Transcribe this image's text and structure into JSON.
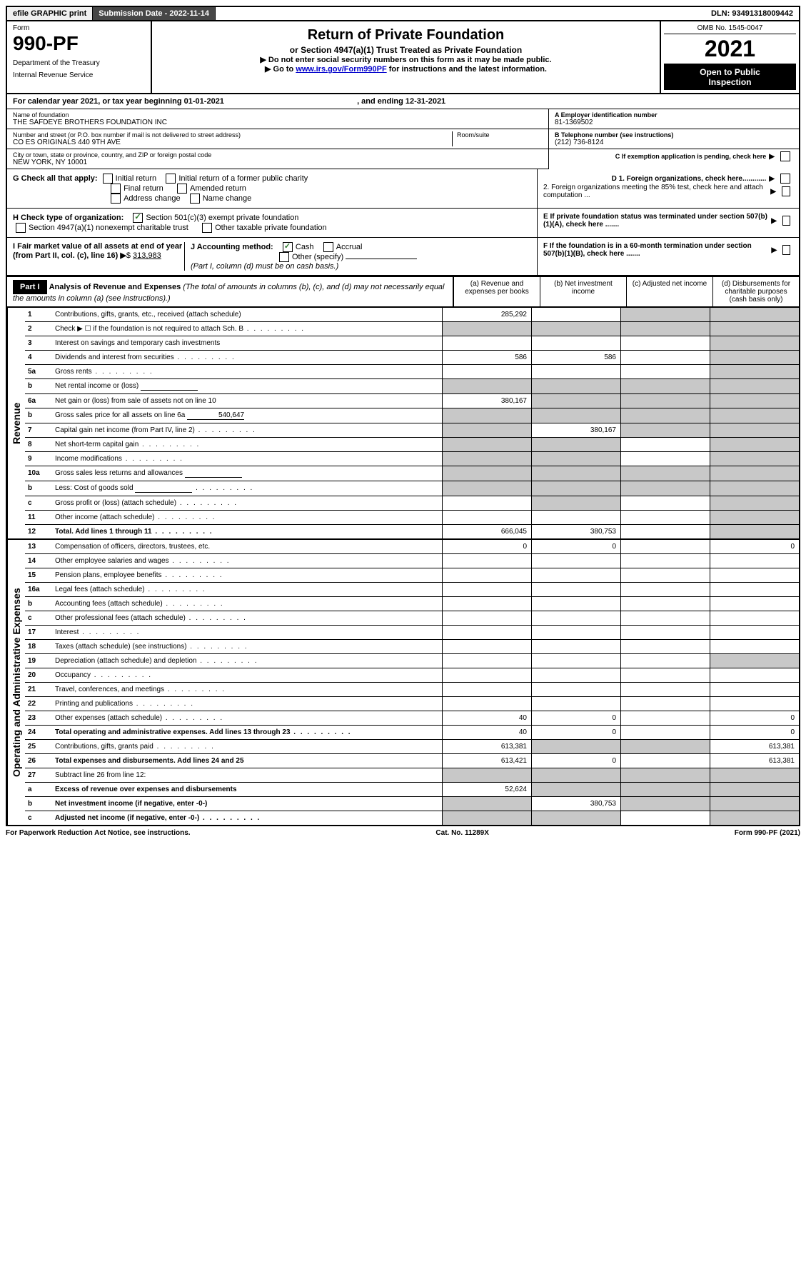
{
  "header": {
    "efile": "efile GRAPHIC print",
    "submission_label": "Submission Date - ",
    "submission_date": "2022-11-14",
    "dln_label": "DLN: ",
    "dln": "93491318009442"
  },
  "form_header": {
    "form_label": "Form",
    "form_number": "990-PF",
    "dept1": "Department of the Treasury",
    "dept2": "Internal Revenue Service",
    "title": "Return of Private Foundation",
    "subtitle": "or Section 4947(a)(1) Trust Treated as Private Foundation",
    "instr1": "▶ Do not enter social security numbers on this form as it may be made public.",
    "instr2_pre": "▶ Go to ",
    "instr2_link": "www.irs.gov/Form990PF",
    "instr2_post": " for instructions and the latest information.",
    "omb": "OMB No. 1545-0047",
    "year": "2021",
    "inspect1": "Open to Public",
    "inspect2": "Inspection"
  },
  "calendar": {
    "text1": "For calendar year 2021, or tax year beginning ",
    "begin": "01-01-2021",
    "text2": ", and ending ",
    "end": "12-31-2021"
  },
  "foundation": {
    "name_label": "Name of foundation",
    "name": "THE SAFDEYE BROTHERS FOUNDATION INC",
    "addr_label": "Number and street (or P.O. box number if mail is not delivered to street address)",
    "addr": "CO ES ORIGINALS 440 9TH AVE",
    "room_label": "Room/suite",
    "city_label": "City or town, state or province, country, and ZIP or foreign postal code",
    "city": "NEW YORK, NY  10001",
    "ein_label": "A Employer identification number",
    "ein": "81-1369502",
    "phone_label": "B Telephone number (see instructions)",
    "phone": "(212) 736-8124",
    "c_label": "C If exemption application is pending, check here"
  },
  "checks": {
    "g_label": "G Check all that apply:",
    "g1": "Initial return",
    "g2": "Initial return of a former public charity",
    "g3": "Final return",
    "g4": "Amended return",
    "g5": "Address change",
    "g6": "Name change",
    "h_label": "H Check type of organization:",
    "h1": "Section 501(c)(3) exempt private foundation",
    "h2": "Section 4947(a)(1) nonexempt charitable trust",
    "h3": "Other taxable private foundation",
    "i_label": "I Fair market value of all assets at end of year (from Part II, col. (c), line 16)",
    "i_value": "313,983",
    "j_label": "J Accounting method:",
    "j1": "Cash",
    "j2": "Accrual",
    "j3": "Other (specify)",
    "j_note": "(Part I, column (d) must be on cash basis.)",
    "d1": "D 1. Foreign organizations, check here............",
    "d2": "2. Foreign organizations meeting the 85% test, check here and attach computation ...",
    "e_label": "E  If private foundation status was terminated under section 507(b)(1)(A), check here .......",
    "f_label": "F  If the foundation is in a 60-month termination under section 507(b)(1)(B), check here ......."
  },
  "part1": {
    "label": "Part I",
    "title": "Analysis of Revenue and Expenses",
    "note": " (The total of amounts in columns (b), (c), and (d) may not necessarily equal the amounts in column (a) (see instructions).)",
    "col_a": "(a)  Revenue and expenses per books",
    "col_b": "(b)  Net investment income",
    "col_c": "(c)  Adjusted net income",
    "col_d": "(d)  Disbursements for charitable purposes (cash basis only)"
  },
  "side_labels": {
    "revenue": "Revenue",
    "expenses": "Operating and Administrative Expenses"
  },
  "rows": [
    {
      "num": "1",
      "desc": "Contributions, gifts, grants, etc., received (attach schedule)",
      "a": "285,292",
      "b": "",
      "c": "",
      "d": "",
      "shade_c": true,
      "shade_d": true
    },
    {
      "num": "2",
      "desc": "Check ▶ ☐ if the foundation is not required to attach Sch. B",
      "a": "",
      "b": "",
      "c": "",
      "d": "",
      "shade_a": true,
      "shade_b": true,
      "shade_c": true,
      "shade_d": true,
      "dots": true
    },
    {
      "num": "3",
      "desc": "Interest on savings and temporary cash investments",
      "a": "",
      "b": "",
      "c": "",
      "d": "",
      "shade_d": true
    },
    {
      "num": "4",
      "desc": "Dividends and interest from securities",
      "a": "586",
      "b": "586",
      "c": "",
      "d": "",
      "shade_d": true,
      "dots": true
    },
    {
      "num": "5a",
      "desc": "Gross rents",
      "a": "",
      "b": "",
      "c": "",
      "d": "",
      "shade_d": true,
      "dots": true
    },
    {
      "num": "b",
      "desc": "Net rental income or (loss)",
      "a": "",
      "b": "",
      "c": "",
      "d": "",
      "shade_a": true,
      "shade_b": true,
      "shade_c": true,
      "shade_d": true,
      "inline_box": true
    },
    {
      "num": "6a",
      "desc": "Net gain or (loss) from sale of assets not on line 10",
      "a": "380,167",
      "b": "",
      "c": "",
      "d": "",
      "shade_b": true,
      "shade_c": true,
      "shade_d": true
    },
    {
      "num": "b",
      "desc": "Gross sales price for all assets on line 6a",
      "a": "",
      "b": "",
      "c": "",
      "d": "",
      "shade_a": true,
      "shade_b": true,
      "shade_c": true,
      "shade_d": true,
      "inline_val": "540,647"
    },
    {
      "num": "7",
      "desc": "Capital gain net income (from Part IV, line 2)",
      "a": "",
      "b": "380,167",
      "c": "",
      "d": "",
      "shade_a": true,
      "shade_c": true,
      "shade_d": true,
      "dots": true
    },
    {
      "num": "8",
      "desc": "Net short-term capital gain",
      "a": "",
      "b": "",
      "c": "",
      "d": "",
      "shade_a": true,
      "shade_b": true,
      "shade_d": true,
      "dots": true
    },
    {
      "num": "9",
      "desc": "Income modifications",
      "a": "",
      "b": "",
      "c": "",
      "d": "",
      "shade_a": true,
      "shade_b": true,
      "shade_d": true,
      "dots": true
    },
    {
      "num": "10a",
      "desc": "Gross sales less returns and allowances",
      "a": "",
      "b": "",
      "c": "",
      "d": "",
      "shade_a": true,
      "shade_b": true,
      "shade_c": true,
      "shade_d": true,
      "inline_box": true
    },
    {
      "num": "b",
      "desc": "Less: Cost of goods sold",
      "a": "",
      "b": "",
      "c": "",
      "d": "",
      "shade_a": true,
      "shade_b": true,
      "shade_c": true,
      "shade_d": true,
      "inline_box": true,
      "dots": true
    },
    {
      "num": "c",
      "desc": "Gross profit or (loss) (attach schedule)",
      "a": "",
      "b": "",
      "c": "",
      "d": "",
      "shade_b": true,
      "shade_d": true,
      "dots": true
    },
    {
      "num": "11",
      "desc": "Other income (attach schedule)",
      "a": "",
      "b": "",
      "c": "",
      "d": "",
      "shade_d": true,
      "dots": true
    },
    {
      "num": "12",
      "desc": "Total. Add lines 1 through 11",
      "a": "666,045",
      "b": "380,753",
      "c": "",
      "d": "",
      "shade_d": true,
      "bold": true,
      "dots": true
    }
  ],
  "exp_rows": [
    {
      "num": "13",
      "desc": "Compensation of officers, directors, trustees, etc.",
      "a": "0",
      "b": "0",
      "c": "",
      "d": "0"
    },
    {
      "num": "14",
      "desc": "Other employee salaries and wages",
      "a": "",
      "b": "",
      "c": "",
      "d": "",
      "dots": true
    },
    {
      "num": "15",
      "desc": "Pension plans, employee benefits",
      "a": "",
      "b": "",
      "c": "",
      "d": "",
      "dots": true
    },
    {
      "num": "16a",
      "desc": "Legal fees (attach schedule)",
      "a": "",
      "b": "",
      "c": "",
      "d": "",
      "dots": true
    },
    {
      "num": "b",
      "desc": "Accounting fees (attach schedule)",
      "a": "",
      "b": "",
      "c": "",
      "d": "",
      "dots": true
    },
    {
      "num": "c",
      "desc": "Other professional fees (attach schedule)",
      "a": "",
      "b": "",
      "c": "",
      "d": "",
      "dots": true
    },
    {
      "num": "17",
      "desc": "Interest",
      "a": "",
      "b": "",
      "c": "",
      "d": "",
      "dots": true
    },
    {
      "num": "18",
      "desc": "Taxes (attach schedule) (see instructions)",
      "a": "",
      "b": "",
      "c": "",
      "d": "",
      "dots": true
    },
    {
      "num": "19",
      "desc": "Depreciation (attach schedule) and depletion",
      "a": "",
      "b": "",
      "c": "",
      "d": "",
      "shade_d": true,
      "dots": true
    },
    {
      "num": "20",
      "desc": "Occupancy",
      "a": "",
      "b": "",
      "c": "",
      "d": "",
      "dots": true
    },
    {
      "num": "21",
      "desc": "Travel, conferences, and meetings",
      "a": "",
      "b": "",
      "c": "",
      "d": "",
      "dots": true
    },
    {
      "num": "22",
      "desc": "Printing and publications",
      "a": "",
      "b": "",
      "c": "",
      "d": "",
      "dots": true
    },
    {
      "num": "23",
      "desc": "Other expenses (attach schedule)",
      "a": "40",
      "b": "0",
      "c": "",
      "d": "0",
      "dots": true
    },
    {
      "num": "24",
      "desc": "Total operating and administrative expenses. Add lines 13 through 23",
      "a": "40",
      "b": "0",
      "c": "",
      "d": "0",
      "bold": true,
      "dots": true
    },
    {
      "num": "25",
      "desc": "Contributions, gifts, grants paid",
      "a": "613,381",
      "b": "",
      "c": "",
      "d": "613,381",
      "shade_b": true,
      "shade_c": true,
      "dots": true
    },
    {
      "num": "26",
      "desc": "Total expenses and disbursements. Add lines 24 and 25",
      "a": "613,421",
      "b": "0",
      "c": "",
      "d": "613,381",
      "bold": true
    },
    {
      "num": "27",
      "desc": "Subtract line 26 from line 12:",
      "a": "",
      "b": "",
      "c": "",
      "d": "",
      "shade_a": true,
      "shade_b": true,
      "shade_c": true,
      "shade_d": true
    },
    {
      "num": "a",
      "desc": "Excess of revenue over expenses and disbursements",
      "a": "52,624",
      "b": "",
      "c": "",
      "d": "",
      "shade_b": true,
      "shade_c": true,
      "shade_d": true,
      "bold": true
    },
    {
      "num": "b",
      "desc": "Net investment income (if negative, enter -0-)",
      "a": "",
      "b": "380,753",
      "c": "",
      "d": "",
      "shade_a": true,
      "shade_c": true,
      "shade_d": true,
      "bold": true
    },
    {
      "num": "c",
      "desc": "Adjusted net income (if negative, enter -0-)",
      "a": "",
      "b": "",
      "c": "",
      "d": "",
      "shade_a": true,
      "shade_b": true,
      "shade_d": true,
      "bold": true,
      "dots": true
    }
  ],
  "footer": {
    "left": "For Paperwork Reduction Act Notice, see instructions.",
    "center": "Cat. No. 11289X",
    "right": "Form 990-PF (2021)"
  }
}
